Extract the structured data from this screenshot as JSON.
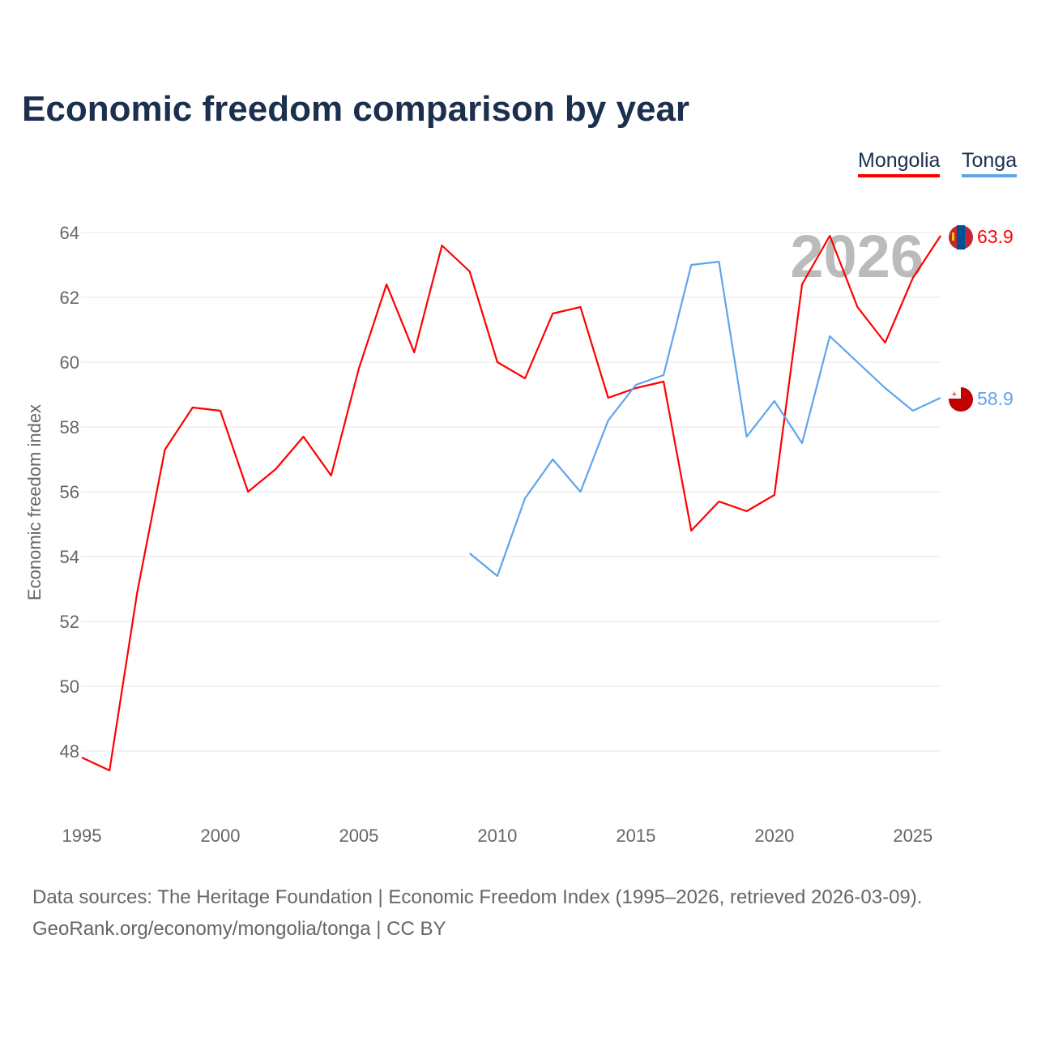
{
  "title": "Economic freedom comparison by year",
  "legend": [
    "Mongolia",
    "Tonga"
  ],
  "watermark_year": "2026",
  "footer": {
    "line1": "Data sources: The Heritage Foundation | Economic Freedom Index (1995–2026, retrieved 2026-03-09).",
    "line2": "GeoRank.org/economy/mongolia/tonga | CC BY"
  },
  "chart_data": {
    "type": "line",
    "title": "Economic freedom comparison by year",
    "xlabel": "",
    "ylabel": "Economic freedom index",
    "xlim": [
      1995,
      2026
    ],
    "ylim": [
      46,
      64.5
    ],
    "xticks": [
      1995,
      2000,
      2005,
      2010,
      2015,
      2020,
      2025
    ],
    "yticks": [
      48,
      50,
      52,
      54,
      56,
      58,
      60,
      62,
      64
    ],
    "grid": true,
    "legend_position": "top-right",
    "series": [
      {
        "name": "Mongolia",
        "color": "#ff0000",
        "end_label": "63.9",
        "x": [
          1995,
          1996,
          1997,
          1998,
          1999,
          2000,
          2001,
          2002,
          2003,
          2004,
          2005,
          2006,
          2007,
          2008,
          2009,
          2010,
          2011,
          2012,
          2013,
          2014,
          2015,
          2016,
          2017,
          2018,
          2019,
          2020,
          2021,
          2022,
          2023,
          2024,
          2025,
          2026
        ],
        "y": [
          47.8,
          47.4,
          52.9,
          57.3,
          58.6,
          58.5,
          56.0,
          56.7,
          57.7,
          56.5,
          59.8,
          62.4,
          60.3,
          63.6,
          62.8,
          60.0,
          59.5,
          61.5,
          61.7,
          58.9,
          59.2,
          59.4,
          54.8,
          55.7,
          55.4,
          55.9,
          62.4,
          63.9,
          61.7,
          60.6,
          62.6,
          63.9
        ]
      },
      {
        "name": "Tonga",
        "color": "#5ea5ec",
        "end_label": "58.9",
        "x": [
          2009,
          2010,
          2011,
          2012,
          2013,
          2014,
          2015,
          2016,
          2017,
          2018,
          2019,
          2020,
          2021,
          2022,
          2023,
          2024,
          2025,
          2026
        ],
        "y": [
          54.1,
          53.4,
          55.8,
          57.0,
          56.0,
          58.2,
          59.3,
          59.6,
          63.0,
          63.1,
          57.7,
          58.8,
          57.5,
          60.8,
          60.0,
          59.2,
          58.5,
          58.9
        ]
      }
    ]
  }
}
